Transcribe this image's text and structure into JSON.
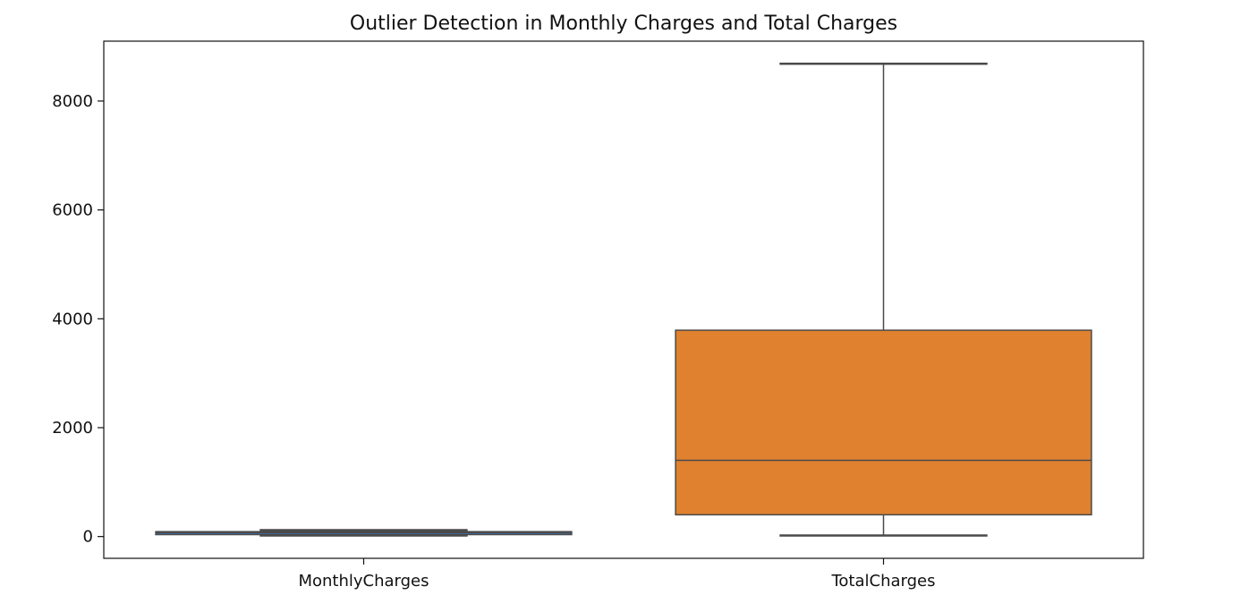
{
  "chart_data": {
    "type": "boxplot",
    "title": "Outlier Detection in Monthly Charges and Total Charges",
    "xlabel": "",
    "ylabel": "",
    "ylim": [
      -400,
      9100
    ],
    "yticks": [
      0,
      2000,
      4000,
      6000,
      8000
    ],
    "ytick_labels": [
      "0",
      "2000",
      "4000",
      "6000",
      "8000"
    ],
    "grid": false,
    "categories": [
      "MonthlyCharges",
      "TotalCharges"
    ],
    "series": [
      {
        "category": "MonthlyCharges",
        "whisker_low": 18.25,
        "q1": 35.5,
        "median": 70.35,
        "q3": 89.85,
        "whisker_high": 118.75,
        "color": "#3b75af"
      },
      {
        "category": "TotalCharges",
        "whisker_low": 18.8,
        "q1": 400,
        "median": 1400,
        "q3": 3790,
        "whisker_high": 8684.8,
        "color": "#e0812f"
      }
    ]
  }
}
